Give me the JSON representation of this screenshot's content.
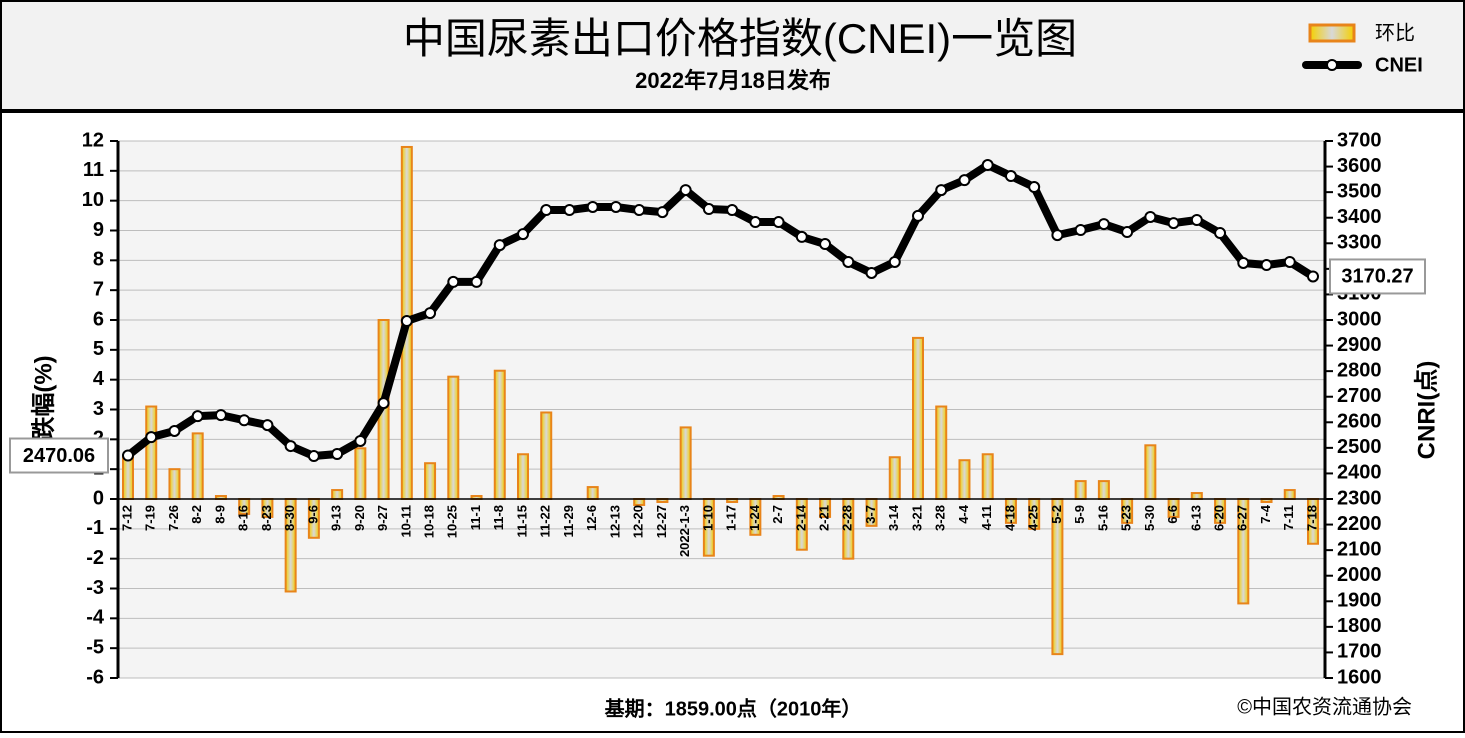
{
  "chart_data": {
    "type": "combo",
    "title": "中国尿素出口价格指数(CNEI)一览图",
    "subtitle": "2022年7月18日发布",
    "y_label": "涨跌幅(%)",
    "y2_label": "CNRI(点)",
    "footnote": "基期：1859.00点（2010年）",
    "source": "©中国农资流通协会",
    "categories": [
      "7-12",
      "7-19",
      "7-26",
      "8-2",
      "8-9",
      "8-16",
      "8-23",
      "8-30",
      "9-6",
      "9-13",
      "9-20",
      "9-27",
      "10-11",
      "10-18",
      "10-25",
      "11-1",
      "11-8",
      "11-15",
      "11-22",
      "11-29",
      "12-6",
      "12-13",
      "12-20",
      "12-27",
      "2022-1-3",
      "1-10",
      "1-17",
      "1-24",
      "2-7",
      "2-14",
      "2-21",
      "2-28",
      "3-7",
      "3-14",
      "3-21",
      "3-28",
      "4-4",
      "4-11",
      "4-18",
      "4-25",
      "5-2",
      "5-9",
      "5-16",
      "5-23",
      "5-30",
      "6-6",
      "6-13",
      "6-20",
      "6-27",
      "7-4",
      "7-11",
      "7-18"
    ],
    "series": [
      {
        "name": "环比",
        "type": "bar",
        "axis": "y",
        "color": "#e8841a",
        "values": [
          1.4,
          3.1,
          1.0,
          2.2,
          0.1,
          -0.5,
          -0.6,
          -3.1,
          -1.3,
          0.3,
          1.7,
          6.0,
          11.8,
          1.2,
          4.1,
          0.1,
          4.3,
          1.5,
          2.9,
          0.0,
          0.4,
          0.0,
          -0.2,
          -0.1,
          2.4,
          -1.9,
          -0.1,
          -1.2,
          0.1,
          -1.7,
          -0.6,
          -2.0,
          -0.9,
          1.4,
          5.4,
          3.1,
          1.3,
          1.5,
          -0.8,
          -1.0,
          -5.2,
          0.6,
          0.6,
          -0.8,
          1.8,
          -0.6,
          0.2,
          -0.8,
          -3.5,
          -0.1,
          0.3,
          -1.5
        ]
      },
      {
        "name": "CNEI",
        "type": "line",
        "axis": "y2",
        "color": "#000000",
        "values": [
          2470.06,
          2542,
          2566,
          2624,
          2628,
          2608,
          2589,
          2507,
          2468,
          2476,
          2527,
          2675,
          2996,
          3027,
          3149,
          3149,
          3293,
          3336,
          3430,
          3430,
          3442,
          3442,
          3430,
          3422,
          3508,
          3434,
          3430,
          3383,
          3383,
          3325,
          3297,
          3227,
          3184,
          3227,
          3407,
          3508,
          3547,
          3606,
          3563,
          3520,
          3332,
          3352,
          3375,
          3344,
          3403,
          3379,
          3391,
          3340,
          3223,
          3215,
          3227,
          3170.27
        ]
      }
    ],
    "ylim": [
      -6,
      12
    ],
    "yticks": [
      -6,
      -5,
      -4,
      -3,
      -2,
      -1,
      0,
      1,
      2,
      3,
      4,
      5,
      6,
      7,
      8,
      9,
      10,
      11,
      12
    ],
    "y2lim": [
      1600,
      3700
    ],
    "y2ticks": [
      1600,
      1700,
      1800,
      1900,
      2000,
      2100,
      2200,
      2300,
      2400,
      2500,
      2600,
      2700,
      2800,
      2900,
      3000,
      3100,
      3200,
      3300,
      3400,
      3500,
      3600,
      3700
    ],
    "grid": true,
    "legend": "top-right"
  }
}
